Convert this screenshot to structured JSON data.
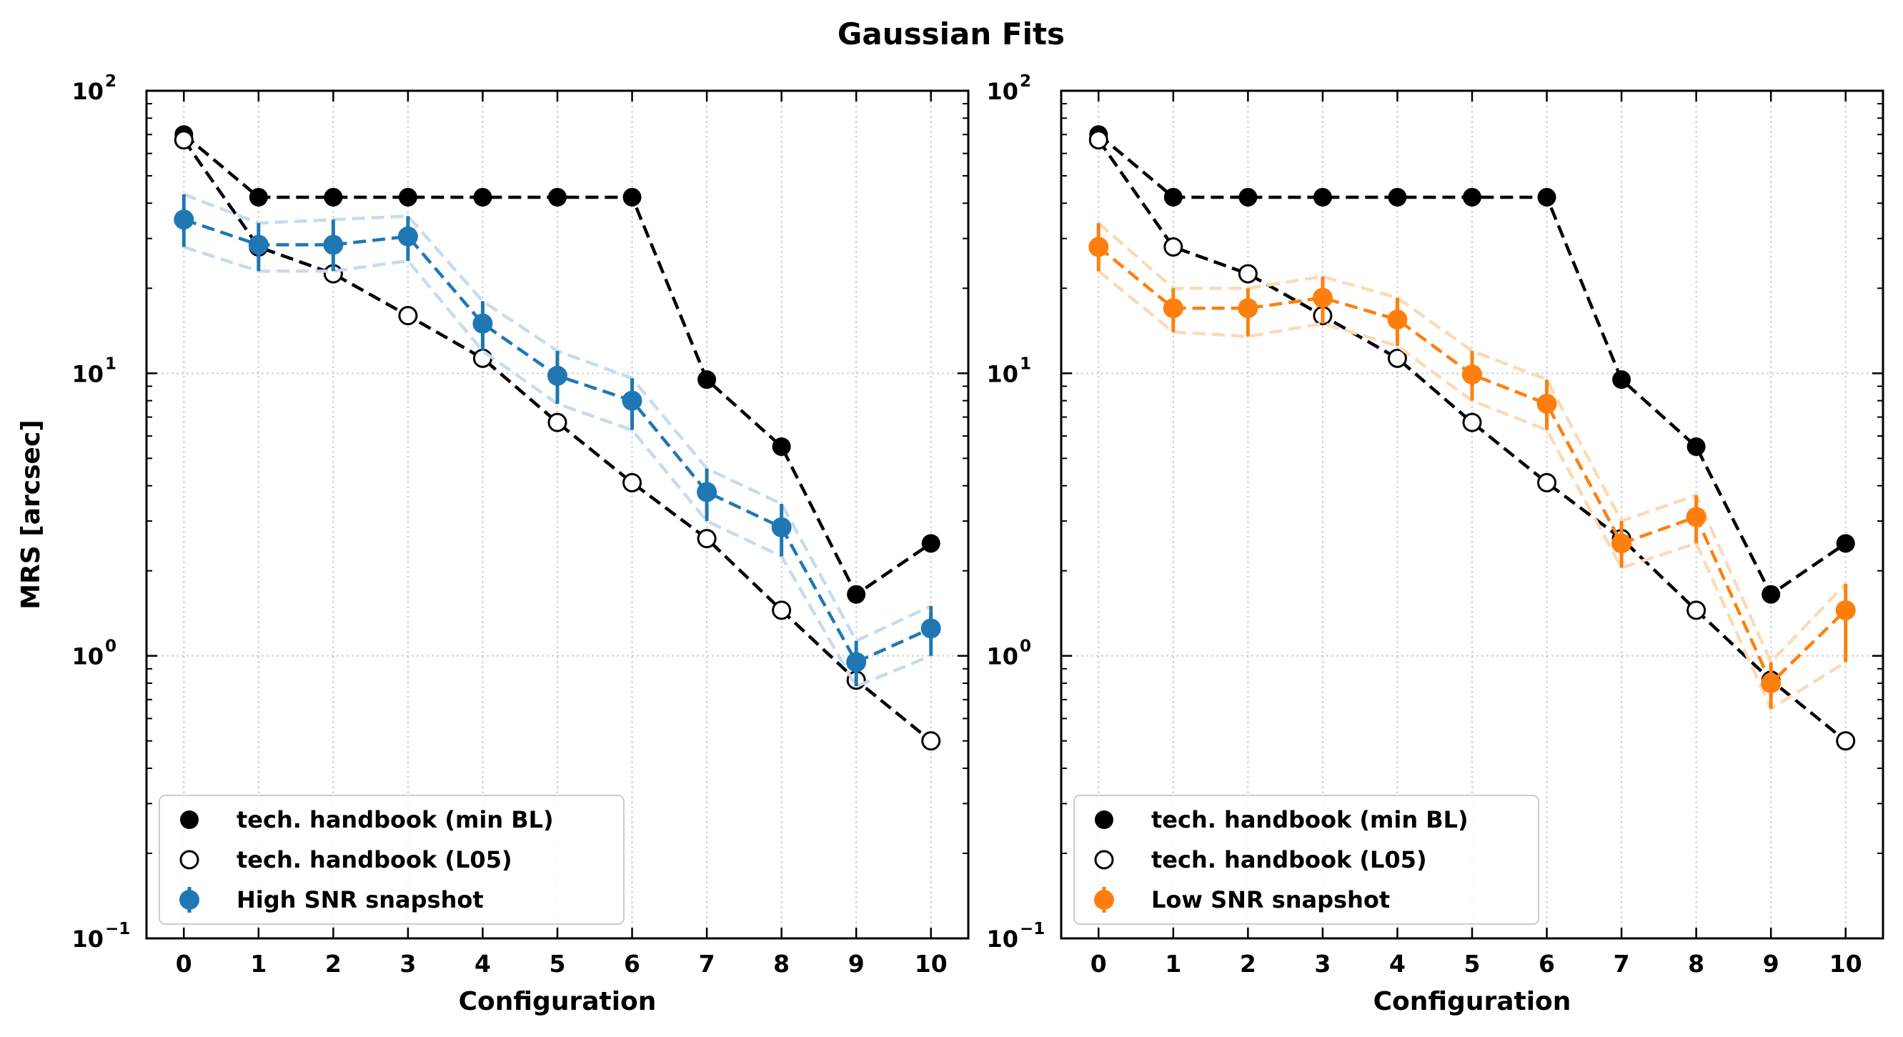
{
  "figure_title": "Gaussian Fits",
  "chart_data": [
    {
      "type": "scatter",
      "panel": "left",
      "xlabel": "Configuration",
      "ylabel": "MRS [arcsec]",
      "yscale": "log",
      "ylim": [
        0.1,
        100
      ],
      "xlim": [
        -0.5,
        10.5
      ],
      "xticks": [
        "0",
        "1",
        "2",
        "3",
        "4",
        "5",
        "6",
        "7",
        "8",
        "9",
        "10"
      ],
      "yticks": [
        {
          "value": 0.1,
          "base": "10",
          "exp": "−1"
        },
        {
          "value": 1,
          "base": "10",
          "exp": "0"
        },
        {
          "value": 10,
          "base": "10",
          "exp": "1"
        },
        {
          "value": 100,
          "base": "10",
          "exp": "2"
        }
      ],
      "grid": true,
      "legend_position": "lower-left",
      "series": [
        {
          "name": "tech. handbook (min BL)",
          "style": "filled",
          "color": "#000000",
          "x": [
            0,
            1,
            2,
            3,
            4,
            5,
            6,
            7,
            8,
            9,
            10
          ],
          "y": [
            70,
            42,
            42,
            42,
            42,
            42,
            42,
            9.5,
            5.5,
            1.65,
            2.5
          ]
        },
        {
          "name": "tech. handbook (L05)",
          "style": "open",
          "color": "#000000",
          "x": [
            0,
            1,
            2,
            3,
            4,
            5,
            6,
            7,
            8,
            9,
            10
          ],
          "y": [
            67,
            28,
            22.5,
            16,
            11.3,
            6.7,
            4.1,
            2.6,
            1.45,
            0.82,
            0.5
          ]
        },
        {
          "name": "High SNR snapshot",
          "style": "errorbar",
          "color": "#1f77b4",
          "band_color": "#c6dbef",
          "x": [
            0,
            1,
            2,
            3,
            4,
            5,
            6,
            7,
            8,
            9,
            10
          ],
          "y": [
            35,
            28.5,
            28.5,
            30.5,
            15,
            9.8,
            8,
            3.8,
            2.85,
            0.95,
            1.25
          ],
          "y_low": [
            28,
            23,
            23,
            25,
            12,
            7.8,
            6.3,
            3,
            2.25,
            0.78,
            1.0
          ],
          "y_high": [
            43,
            34,
            35,
            36,
            18,
            12,
            9.6,
            4.6,
            3.45,
            1.13,
            1.5
          ]
        }
      ]
    },
    {
      "type": "scatter",
      "panel": "right",
      "xlabel": "Configuration",
      "ylabel": "",
      "yscale": "log",
      "ylim": [
        0.1,
        100
      ],
      "xlim": [
        -0.5,
        10.5
      ],
      "xticks": [
        "0",
        "1",
        "2",
        "3",
        "4",
        "5",
        "6",
        "7",
        "8",
        "9",
        "10"
      ],
      "yticks": [
        {
          "value": 0.1,
          "base": "10",
          "exp": "−1"
        },
        {
          "value": 1,
          "base": "10",
          "exp": "0"
        },
        {
          "value": 10,
          "base": "10",
          "exp": "1"
        },
        {
          "value": 100,
          "base": "10",
          "exp": "2"
        }
      ],
      "grid": true,
      "legend_position": "lower-left",
      "series": [
        {
          "name": "tech. handbook (min BL)",
          "style": "filled",
          "color": "#000000",
          "x": [
            0,
            1,
            2,
            3,
            4,
            5,
            6,
            7,
            8,
            9,
            10
          ],
          "y": [
            70,
            42,
            42,
            42,
            42,
            42,
            42,
            9.5,
            5.5,
            1.65,
            2.5
          ]
        },
        {
          "name": "tech. handbook (L05)",
          "style": "open",
          "color": "#000000",
          "x": [
            0,
            1,
            2,
            3,
            4,
            5,
            6,
            7,
            8,
            9,
            10
          ],
          "y": [
            67,
            28,
            22.5,
            16,
            11.3,
            6.7,
            4.1,
            2.6,
            1.45,
            0.82,
            0.5
          ]
        },
        {
          "name": "Low SNR snapshot",
          "style": "errorbar",
          "color": "#ff7f0e",
          "band_color": "#fdd9b5",
          "x": [
            0,
            1,
            2,
            3,
            4,
            5,
            6,
            7,
            8,
            9,
            10
          ],
          "y": [
            28,
            17,
            17,
            18.5,
            15.5,
            9.9,
            7.8,
            2.5,
            3.1,
            0.8,
            1.45
          ],
          "y_low": [
            23,
            14,
            13.5,
            15,
            12.5,
            8,
            6.3,
            2.05,
            2.5,
            0.65,
            0.95
          ],
          "y_high": [
            34,
            20,
            20,
            22,
            18.5,
            12,
            9.5,
            3.0,
            3.7,
            0.95,
            1.8
          ]
        }
      ]
    }
  ]
}
